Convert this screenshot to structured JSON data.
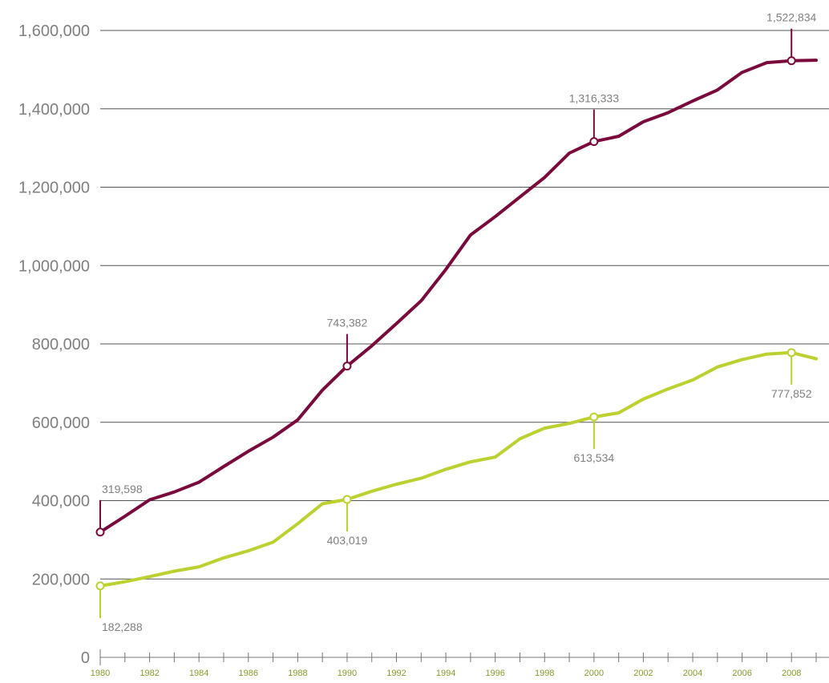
{
  "chart_data": {
    "type": "line",
    "title": "",
    "xlabel": "",
    "ylabel": "",
    "x": [
      1980,
      1981,
      1982,
      1983,
      1984,
      1985,
      1986,
      1987,
      1988,
      1989,
      1990,
      1991,
      1992,
      1993,
      1994,
      1995,
      1996,
      1997,
      1998,
      1999,
      2000,
      2001,
      2002,
      2003,
      2004,
      2005,
      2006,
      2007,
      2008,
      2009
    ],
    "xlim": [
      1980,
      2009
    ],
    "ylim": [
      0,
      1600000
    ],
    "x_ticks": [
      "1980",
      "1982",
      "1984",
      "1986",
      "1988",
      "1990",
      "1992",
      "1994",
      "1996",
      "1998",
      "2000",
      "2002",
      "2004",
      "2006",
      "2008"
    ],
    "y_ticks": [
      "0",
      "200,000",
      "400,000",
      "600,000",
      "800,000",
      "1,000,000",
      "1,200,000",
      "1,400,000",
      "1,600,000"
    ],
    "grid": "horizontal",
    "series": [
      {
        "color": "#7a0a3c",
        "values": [
          319598,
          360000,
          402000,
          422000,
          447000,
          487000,
          526000,
          562000,
          606000,
          682000,
          743382,
          795000,
          852000,
          910000,
          990000,
          1078000,
          1125000,
          1175000,
          1225000,
          1287000,
          1316333,
          1330000,
          1367000,
          1390000,
          1420000,
          1448000,
          1493000,
          1518000,
          1522834,
          1524000
        ],
        "annotations": [
          {
            "year": 1980,
            "text": "319,598",
            "position": "above"
          },
          {
            "year": 1990,
            "text": "743,382",
            "position": "above"
          },
          {
            "year": 2000,
            "text": "1,316,333",
            "position": "above"
          },
          {
            "year": 2008,
            "text": "1,522,834",
            "position": "above"
          }
        ]
      },
      {
        "color": "#bcd02f",
        "values": [
          182288,
          193000,
          206000,
          220000,
          231000,
          254000,
          272000,
          294000,
          341000,
          392000,
          403019,
          424000,
          442000,
          457000,
          480000,
          499000,
          511000,
          558000,
          585000,
          597000,
          613534,
          624000,
          659000,
          685000,
          708000,
          741000,
          760000,
          774000,
          777852,
          762000
        ],
        "annotations": [
          {
            "year": 1980,
            "text": "182,288",
            "position": "below"
          },
          {
            "year": 1990,
            "text": "403,019",
            "position": "below"
          },
          {
            "year": 2000,
            "text": "613,534",
            "position": "below"
          },
          {
            "year": 2008,
            "text": "777,852",
            "position": "below"
          }
        ]
      }
    ]
  }
}
